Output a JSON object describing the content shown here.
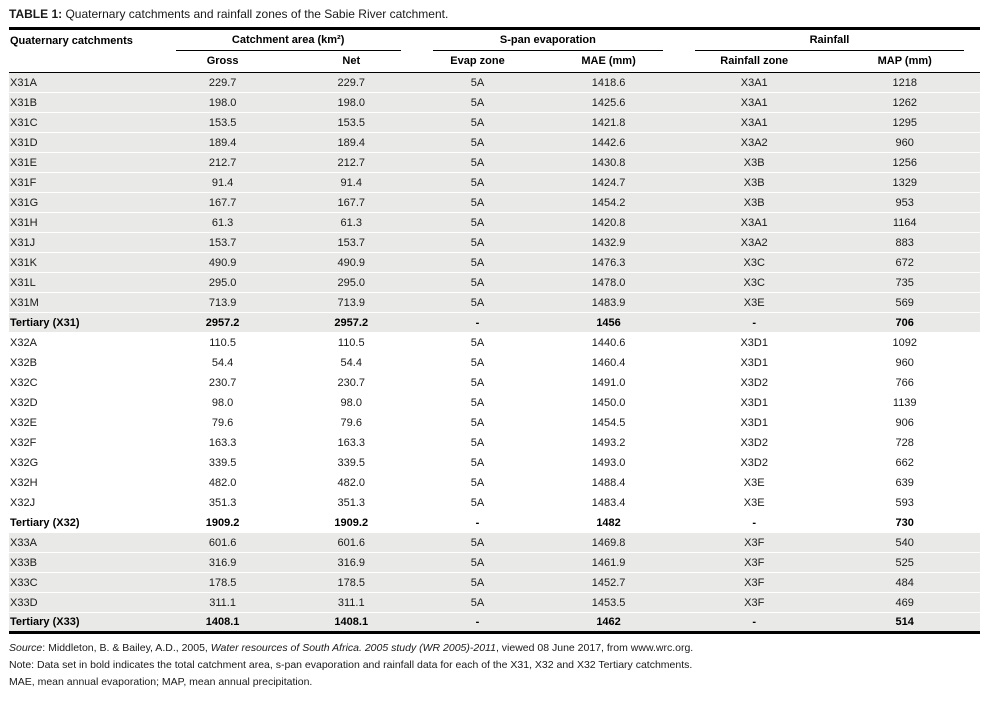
{
  "title": {
    "label": "TABLE 1:",
    "text": " Quaternary catchments and rainfall zones of the Sabie River catchment."
  },
  "table": {
    "corner_header": "Quaternary catchments",
    "groups": [
      {
        "label": "Catchment area (km²)",
        "columns": [
          "Gross",
          "Net"
        ]
      },
      {
        "label": "S-pan evaporation",
        "columns": [
          "Evap zone",
          "MAE (mm)"
        ]
      },
      {
        "label": "Rainfall",
        "columns": [
          "Rainfall zone",
          "MAP (mm)"
        ]
      }
    ],
    "row_groups": [
      {
        "name": "X31",
        "shaded": true,
        "rows": [
          {
            "id": "X31A",
            "gross": "229.7",
            "net": "229.7",
            "evap_zone": "5A",
            "mae": "1418.6",
            "rainfall_zone": "X3A1",
            "map": "1218",
            "bold": false
          },
          {
            "id": "X31B",
            "gross": "198.0",
            "net": "198.0",
            "evap_zone": "5A",
            "mae": "1425.6",
            "rainfall_zone": "X3A1",
            "map": "1262",
            "bold": false
          },
          {
            "id": "X31C",
            "gross": "153.5",
            "net": "153.5",
            "evap_zone": "5A",
            "mae": "1421.8",
            "rainfall_zone": "X3A1",
            "map": "1295",
            "bold": false
          },
          {
            "id": "X31D",
            "gross": "189.4",
            "net": "189.4",
            "evap_zone": "5A",
            "mae": "1442.6",
            "rainfall_zone": "X3A2",
            "map": "960",
            "bold": false
          },
          {
            "id": "X31E",
            "gross": "212.7",
            "net": "212.7",
            "evap_zone": "5A",
            "mae": "1430.8",
            "rainfall_zone": "X3B",
            "map": "1256",
            "bold": false
          },
          {
            "id": "X31F",
            "gross": "91.4",
            "net": "91.4",
            "evap_zone": "5A",
            "mae": "1424.7",
            "rainfall_zone": "X3B",
            "map": "1329",
            "bold": false
          },
          {
            "id": "X31G",
            "gross": "167.7",
            "net": "167.7",
            "evap_zone": "5A",
            "mae": "1454.2",
            "rainfall_zone": "X3B",
            "map": "953",
            "bold": false
          },
          {
            "id": "X31H",
            "gross": "61.3",
            "net": "61.3",
            "evap_zone": "5A",
            "mae": "1420.8",
            "rainfall_zone": "X3A1",
            "map": "1164",
            "bold": false
          },
          {
            "id": "X31J",
            "gross": "153.7",
            "net": "153.7",
            "evap_zone": "5A",
            "mae": "1432.9",
            "rainfall_zone": "X3A2",
            "map": "883",
            "bold": false
          },
          {
            "id": "X31K",
            "gross": "490.9",
            "net": "490.9",
            "evap_zone": "5A",
            "mae": "1476.3",
            "rainfall_zone": "X3C",
            "map": "672",
            "bold": false
          },
          {
            "id": "X31L",
            "gross": "295.0",
            "net": "295.0",
            "evap_zone": "5A",
            "mae": "1478.0",
            "rainfall_zone": "X3C",
            "map": "735",
            "bold": false
          },
          {
            "id": "X31M",
            "gross": "713.9",
            "net": "713.9",
            "evap_zone": "5A",
            "mae": "1483.9",
            "rainfall_zone": "X3E",
            "map": "569",
            "bold": false
          },
          {
            "id": "Tertiary (X31)",
            "gross": "2957.2",
            "net": "2957.2",
            "evap_zone": "-",
            "mae": "1456",
            "rainfall_zone": "-",
            "map": "706",
            "bold": true
          }
        ]
      },
      {
        "name": "X32",
        "shaded": false,
        "rows": [
          {
            "id": "X32A",
            "gross": "110.5",
            "net": "110.5",
            "evap_zone": "5A",
            "mae": "1440.6",
            "rainfall_zone": "X3D1",
            "map": "1092",
            "bold": false
          },
          {
            "id": "X32B",
            "gross": "54.4",
            "net": "54.4",
            "evap_zone": "5A",
            "mae": "1460.4",
            "rainfall_zone": "X3D1",
            "map": "960",
            "bold": false
          },
          {
            "id": "X32C",
            "gross": "230.7",
            "net": "230.7",
            "evap_zone": "5A",
            "mae": "1491.0",
            "rainfall_zone": "X3D2",
            "map": "766",
            "bold": false
          },
          {
            "id": "X32D",
            "gross": "98.0",
            "net": "98.0",
            "evap_zone": "5A",
            "mae": "1450.0",
            "rainfall_zone": "X3D1",
            "map": "1139",
            "bold": false
          },
          {
            "id": "X32E",
            "gross": "79.6",
            "net": "79.6",
            "evap_zone": "5A",
            "mae": "1454.5",
            "rainfall_zone": "X3D1",
            "map": "906",
            "bold": false
          },
          {
            "id": "X32F",
            "gross": "163.3",
            "net": "163.3",
            "evap_zone": "5A",
            "mae": "1493.2",
            "rainfall_zone": "X3D2",
            "map": "728",
            "bold": false
          },
          {
            "id": "X32G",
            "gross": "339.5",
            "net": "339.5",
            "evap_zone": "5A",
            "mae": "1493.0",
            "rainfall_zone": "X3D2",
            "map": "662",
            "bold": false
          },
          {
            "id": "X32H",
            "gross": "482.0",
            "net": "482.0",
            "evap_zone": "5A",
            "mae": "1488.4",
            "rainfall_zone": "X3E",
            "map": "639",
            "bold": false
          },
          {
            "id": "X32J",
            "gross": "351.3",
            "net": "351.3",
            "evap_zone": "5A",
            "mae": "1483.4",
            "rainfall_zone": "X3E",
            "map": "593",
            "bold": false
          },
          {
            "id": "Tertiary (X32)",
            "gross": "1909.2",
            "net": "1909.2",
            "evap_zone": "-",
            "mae": "1482",
            "rainfall_zone": "-",
            "map": "730",
            "bold": true
          }
        ]
      },
      {
        "name": "X33",
        "shaded": true,
        "rows": [
          {
            "id": "X33A",
            "gross": "601.6",
            "net": "601.6",
            "evap_zone": "5A",
            "mae": "1469.8",
            "rainfall_zone": "X3F",
            "map": "540",
            "bold": false
          },
          {
            "id": "X33B",
            "gross": "316.9",
            "net": "316.9",
            "evap_zone": "5A",
            "mae": "1461.9",
            "rainfall_zone": "X3F",
            "map": "525",
            "bold": false
          },
          {
            "id": "X33C",
            "gross": "178.5",
            "net": "178.5",
            "evap_zone": "5A",
            "mae": "1452.7",
            "rainfall_zone": "X3F",
            "map": "484",
            "bold": false
          },
          {
            "id": "X33D",
            "gross": "311.1",
            "net": "311.1",
            "evap_zone": "5A",
            "mae": "1453.5",
            "rainfall_zone": "X3F",
            "map": "469",
            "bold": false
          },
          {
            "id": "Tertiary (X33)",
            "gross": "1408.1",
            "net": "1408.1",
            "evap_zone": "-",
            "mae": "1462",
            "rainfall_zone": "-",
            "map": "514",
            "bold": true
          }
        ]
      }
    ]
  },
  "footer": {
    "source_segments": [
      {
        "text": "Source",
        "italic": true
      },
      {
        "text": ": Middleton, B. & Bailey, A.D., 2005, ",
        "italic": false
      },
      {
        "text": "Water resources of South Africa. 2005 study (WR 2005)-2011",
        "italic": true
      },
      {
        "text": ", viewed 08 June 2017, from www.wrc.org.",
        "italic": false
      }
    ],
    "note_line": "Note: Data set in bold indicates the total catchment area, s-pan evaporation and rainfall data for each of the X31, X32 and X32 Tertiary catchments.",
    "abbrev_line": "MAE, mean annual evaporation; MAP, mean annual precipitation."
  },
  "colors": {
    "stripe": "#e9e9e8",
    "rule": "#000000",
    "text": "#1a1a1a"
  }
}
